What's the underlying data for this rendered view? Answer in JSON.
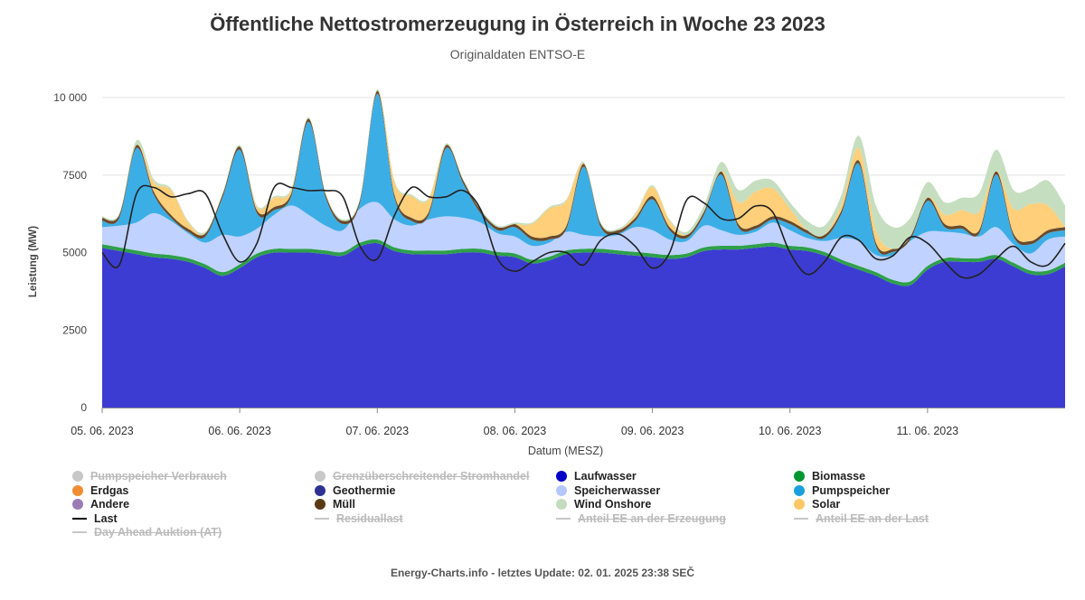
{
  "page": {
    "title": "Öffentliche Nettostromerzeugung in Österreich in Woche 23 2023",
    "subtitle": "Originaldaten ENTSO-E",
    "footer": "Energy-Charts.info - letztes Update: 02. 01. 2025 23:38 SEČ"
  },
  "legend": [
    {
      "label": "Pumpspeicher Verbrauch",
      "color": "#c8c8c8",
      "kind": "dot",
      "hidden": true
    },
    {
      "label": "Grenzüberschreitender Stromhandel",
      "color": "#c8c8c8",
      "kind": "dot",
      "hidden": true
    },
    {
      "label": "Laufwasser",
      "color": "#0000c8",
      "kind": "dot",
      "hidden": false
    },
    {
      "label": "Biomasse",
      "color": "#009632",
      "kind": "dot",
      "hidden": false
    },
    {
      "label": "Erdgas",
      "color": "#f08c32",
      "kind": "dot",
      "hidden": false
    },
    {
      "label": "Geothermie",
      "color": "#2e3192",
      "kind": "dot",
      "hidden": false
    },
    {
      "label": "Speicherwasser",
      "color": "#b4c8ff",
      "kind": "dot",
      "hidden": false
    },
    {
      "label": "Pumpspeicher",
      "color": "#1aa0dc",
      "kind": "dot",
      "hidden": false
    },
    {
      "label": "Andere",
      "color": "#9a7cb4",
      "kind": "dot",
      "hidden": false
    },
    {
      "label": "Müll",
      "color": "#5a3a14",
      "kind": "dot",
      "hidden": false
    },
    {
      "label": "Wind Onshore",
      "color": "#c3dcbe",
      "kind": "dot",
      "hidden": false
    },
    {
      "label": "Solar",
      "color": "#ffc864",
      "kind": "dot",
      "hidden": false
    },
    {
      "label": "Last",
      "color": "#000000",
      "kind": "line",
      "hidden": false
    },
    {
      "label": "Residuallast",
      "color": "#c8c8c8",
      "kind": "line",
      "hidden": true
    },
    {
      "label": "Anteil EE an der Erzeugung",
      "color": "#c8c8c8",
      "kind": "line",
      "hidden": true
    },
    {
      "label": "Anteil EE an der Last",
      "color": "#c8c8c8",
      "kind": "line",
      "hidden": true
    },
    {
      "label": "Day Ahead Auktion (AT)",
      "color": "#c8c8c8",
      "kind": "line",
      "hidden": true
    }
  ],
  "chart_data": {
    "type": "area",
    "ylabel": "Leistung (MW)",
    "xlabel": "Datum (MESZ)",
    "ylim": [
      0,
      10000
    ],
    "yticks": [
      0,
      2500,
      5000,
      7500,
      10000
    ],
    "ytick_labels": [
      "0",
      "2500",
      "5000",
      "7500",
      "10 000"
    ],
    "xtick_labels": [
      "05. 06. 2023",
      "06. 06. 2023",
      "07. 06. 2023",
      "08. 06. 2023",
      "09. 06. 2023",
      "10. 06. 2023",
      "11. 06. 2023"
    ],
    "x_unit": "hours since 05. 06. 2023 00:00",
    "x": [
      0,
      3,
      6,
      9,
      12,
      15,
      18,
      21,
      24,
      27,
      30,
      33,
      36,
      39,
      42,
      45,
      48,
      51,
      54,
      57,
      60,
      63,
      66,
      69,
      72,
      75,
      78,
      81,
      84,
      87,
      90,
      93,
      96,
      99,
      102,
      105,
      108,
      111,
      114,
      117,
      120,
      123,
      126,
      129,
      132,
      135,
      138,
      141,
      144,
      147,
      150,
      153,
      156,
      159,
      162,
      165,
      168
    ],
    "series": [
      {
        "name": "Laufwasser",
        "color": "#3c3cd2",
        "values": [
          5150,
          5050,
          4950,
          4850,
          4800,
          4700,
          4500,
          4250,
          4500,
          4850,
          5000,
          5000,
          5000,
          4950,
          4900,
          5200,
          5300,
          5050,
          4950,
          4950,
          4950,
          5000,
          5000,
          4900,
          4850,
          4650,
          4750,
          4950,
          5000,
          5000,
          4950,
          4900,
          4850,
          4800,
          4850,
          5050,
          5100,
          5100,
          5150,
          5200,
          5100,
          5050,
          4900,
          4650,
          4450,
          4250,
          4000,
          3950,
          4450,
          4700,
          4700,
          4700,
          4800,
          4550,
          4300,
          4300,
          4550
        ]
      },
      {
        "name": "Biomasse",
        "color": "#2ea04a",
        "values": [
          120,
          120,
          120,
          120,
          120,
          120,
          120,
          120,
          120,
          120,
          120,
          120,
          120,
          120,
          120,
          120,
          120,
          120,
          120,
          120,
          120,
          120,
          120,
          120,
          120,
          120,
          120,
          120,
          120,
          120,
          120,
          120,
          120,
          120,
          120,
          120,
          120,
          120,
          120,
          120,
          120,
          120,
          120,
          120,
          120,
          120,
          120,
          120,
          120,
          120,
          120,
          120,
          120,
          120,
          120,
          120,
          120
        ]
      },
      {
        "name": "Speicherwasser",
        "color": "#c0d2ff",
        "values": [
          550,
          700,
          900,
          1300,
          1100,
          800,
          700,
          1200,
          900,
          800,
          1100,
          1400,
          1100,
          800,
          700,
          1100,
          1200,
          900,
          800,
          1000,
          1100,
          1000,
          850,
          600,
          550,
          450,
          450,
          600,
          450,
          400,
          500,
          800,
          750,
          500,
          400,
          700,
          500,
          350,
          400,
          650,
          500,
          300,
          350,
          700,
          800,
          550,
          800,
          1300,
          1100,
          850,
          800,
          700,
          900,
          600,
          550,
          1000,
          850
        ]
      },
      {
        "name": "Pumpspeicher",
        "color": "#3caee6",
        "values": [
          200,
          250,
          2400,
          600,
          100,
          50,
          200,
          1200,
          2800,
          500,
          150,
          300,
          3000,
          900,
          200,
          200,
          3500,
          700,
          150,
          150,
          2200,
          1100,
          300,
          100,
          300,
          200,
          100,
          100,
          2200,
          300,
          50,
          200,
          1000,
          300,
          100,
          350,
          1800,
          250,
          100,
          100,
          200,
          150,
          100,
          800,
          2500,
          300,
          100,
          50,
          1000,
          150,
          150,
          100,
          1700,
          250,
          300,
          200,
          200
        ]
      },
      {
        "name": "Müll",
        "color": "#6b4a2a",
        "values": [
          100,
          100,
          100,
          100,
          100,
          100,
          100,
          100,
          100,
          100,
          100,
          100,
          100,
          100,
          100,
          100,
          100,
          100,
          100,
          100,
          100,
          100,
          100,
          100,
          100,
          100,
          100,
          100,
          100,
          100,
          100,
          100,
          100,
          100,
          100,
          100,
          100,
          100,
          100,
          100,
          100,
          100,
          100,
          100,
          100,
          100,
          100,
          100,
          100,
          100,
          100,
          100,
          100,
          100,
          100,
          100,
          100
        ]
      },
      {
        "name": "Solar",
        "color": "#ffcf7a",
        "values": [
          0,
          0,
          0,
          300,
          800,
          200,
          0,
          0,
          0,
          100,
          300,
          100,
          0,
          0,
          0,
          0,
          0,
          400,
          700,
          400,
          0,
          0,
          0,
          0,
          0,
          400,
          900,
          800,
          0,
          0,
          0,
          100,
          300,
          200,
          0,
          0,
          0,
          700,
          1100,
          900,
          400,
          0,
          0,
          200,
          400,
          400,
          0,
          0,
          0,
          300,
          500,
          600,
          0,
          800,
          1200,
          800,
          0
        ]
      },
      {
        "name": "Wind Onshore",
        "color": "#c6dec0",
        "values": [
          50,
          50,
          150,
          100,
          50,
          50,
          50,
          50,
          50,
          50,
          50,
          50,
          50,
          50,
          50,
          50,
          50,
          50,
          50,
          50,
          50,
          50,
          50,
          50,
          50,
          50,
          50,
          50,
          50,
          50,
          50,
          50,
          50,
          50,
          100,
          200,
          300,
          400,
          350,
          250,
          200,
          300,
          300,
          300,
          400,
          800,
          700,
          600,
          500,
          400,
          400,
          600,
          700,
          600,
          500,
          800,
          700
        ]
      },
      {
        "name": "Last",
        "color": "#222222",
        "kind": "line",
        "values": [
          5000,
          4600,
          6900,
          7100,
          6800,
          6900,
          6900,
          5600,
          4700,
          5300,
          7100,
          7100,
          7000,
          7000,
          6800,
          5200,
          4800,
          6200,
          7100,
          6800,
          6800,
          7000,
          6400,
          4800,
          4400,
          4700,
          5000,
          5000,
          4600,
          5400,
          5600,
          5200,
          4500,
          5000,
          6700,
          6600,
          6100,
          6100,
          6500,
          6300,
          5000,
          4300,
          4700,
          5500,
          5400,
          4800,
          4900,
          5500,
          5300,
          4700,
          4200,
          4300,
          4800,
          5200,
          4700,
          4600,
          5300
        ]
      }
    ]
  }
}
